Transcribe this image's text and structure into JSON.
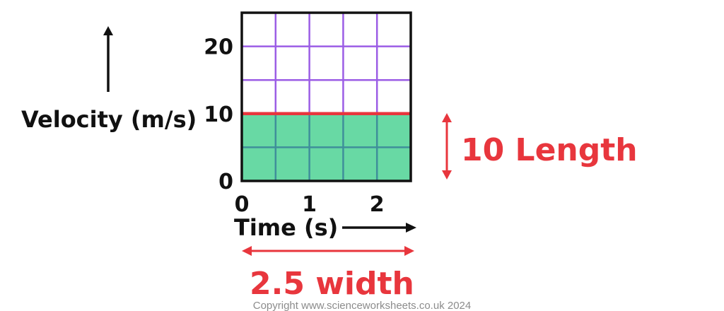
{
  "chart_data": {
    "type": "area",
    "xlabel": "Time (s)",
    "ylabel": "Velocity (m/s)",
    "xlim": [
      0,
      2.5
    ],
    "ylim": [
      0,
      25
    ],
    "x_ticks": [
      "0",
      "1",
      "2"
    ],
    "y_ticks": [
      "0",
      "10",
      "20"
    ],
    "grid": true,
    "series": [
      {
        "x": [
          0,
          2.5
        ],
        "y": [
          10,
          10
        ]
      }
    ],
    "annotations": {
      "height_label": "10 Length",
      "width_label": "2.5 width"
    }
  },
  "colors": {
    "grid": "#9b5de5",
    "grid_in_area": "#3f8f9a",
    "area_fill": "#68d9a4",
    "line": "#e8363d",
    "annotation": "#e8363d",
    "border": "#111111"
  },
  "footer": {
    "copyright": "Copyright www.scienceworksheets.co.uk 2024"
  }
}
